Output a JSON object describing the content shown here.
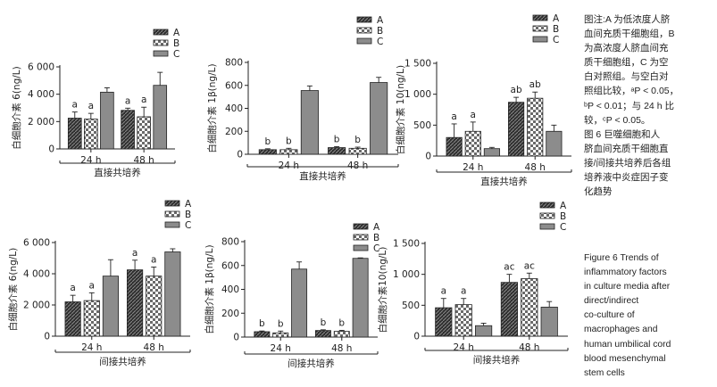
{
  "chart_data": [
    {
      "type": "bar",
      "ylabel": "白细胞介素 6(ng/L)",
      "xlabel": "直接共培养",
      "categories": [
        "24 h",
        "48 h"
      ],
      "ylim": [
        0,
        6000
      ],
      "yticks": [
        "0",
        "2 000",
        "4 000",
        "6 000"
      ],
      "series": [
        {
          "name": "A",
          "values": [
            2250,
            2820
          ],
          "errors": [
            450,
            160
          ]
        },
        {
          "name": "B",
          "values": [
            2180,
            2350
          ],
          "errors": [
            420,
            700
          ]
        },
        {
          "name": "C",
          "values": [
            4150,
            4650
          ],
          "errors": [
            320,
            950
          ]
        }
      ],
      "annotations": [
        [
          "a",
          "a",
          ""
        ],
        [
          "a",
          "a",
          ""
        ]
      ]
    },
    {
      "type": "bar",
      "ylabel": "白细胞介素 1β(ng/L)",
      "xlabel": "直接共培养",
      "categories": [
        "24 h",
        "48 h"
      ],
      "ylim": [
        0,
        800
      ],
      "yticks": [
        "0",
        "200",
        "400",
        "600",
        "800"
      ],
      "series": [
        {
          "name": "A",
          "values": [
            40,
            58
          ],
          "errors": [
            8,
            8
          ]
        },
        {
          "name": "B",
          "values": [
            40,
            52
          ],
          "errors": [
            12,
            10
          ]
        },
        {
          "name": "C",
          "values": [
            555,
            625
          ],
          "errors": [
            40,
            45
          ]
        }
      ],
      "annotations": [
        [
          "b",
          "b",
          ""
        ],
        [
          "b",
          "b",
          ""
        ]
      ]
    },
    {
      "type": "bar",
      "ylabel": "白细胞介素 10(ng/L)",
      "xlabel": "直接共培养",
      "categories": [
        "24 h",
        "48 h"
      ],
      "ylim": [
        0,
        1500
      ],
      "yticks": [
        "0",
        "500",
        "1 000",
        "1 500"
      ],
      "series": [
        {
          "name": "A",
          "values": [
            300,
            870
          ],
          "errors": [
            220,
            80
          ]
        },
        {
          "name": "B",
          "values": [
            400,
            935
          ],
          "errors": [
            150,
            100
          ]
        },
        {
          "name": "C",
          "values": [
            120,
            400
          ],
          "errors": [
            20,
            100
          ]
        }
      ],
      "annotations": [
        [
          "a",
          "a",
          ""
        ],
        [
          "ab",
          "ab",
          ""
        ]
      ]
    },
    {
      "type": "bar",
      "ylabel": "白细胞介素 6(ng/L)",
      "xlabel": "间接共培养",
      "categories": [
        "24 h",
        "48 h"
      ],
      "ylim": [
        0,
        6000
      ],
      "yticks": [
        "0",
        "2 000",
        "4 000",
        "6 000"
      ],
      "series": [
        {
          "name": "A",
          "values": [
            2200,
            4250
          ],
          "errors": [
            420,
            620
          ]
        },
        {
          "name": "B",
          "values": [
            2280,
            3850
          ],
          "errors": [
            500,
            580
          ]
        },
        {
          "name": "C",
          "values": [
            3850,
            5400
          ],
          "errors": [
            1050,
            200
          ]
        }
      ],
      "annotations": [
        [
          "a",
          "a",
          ""
        ],
        [
          "a",
          "a",
          ""
        ]
      ]
    },
    {
      "type": "bar",
      "ylabel": "白细胞介素 1β(ng/L)",
      "xlabel": "间接共培养",
      "categories": [
        "24 h",
        "48 h"
      ],
      "ylim": [
        0,
        800
      ],
      "yticks": [
        "0",
        "200",
        "400",
        "600",
        "800"
      ],
      "series": [
        {
          "name": "A",
          "values": [
            45,
            55
          ],
          "errors": [
            6,
            6
          ]
        },
        {
          "name": "B",
          "values": [
            35,
            48
          ],
          "errors": [
            15,
            8
          ]
        },
        {
          "name": "C",
          "values": [
            570,
            660
          ],
          "errors": [
            60,
            4
          ]
        }
      ],
      "annotations": [
        [
          "b",
          "b",
          ""
        ],
        [
          "b",
          "b",
          ""
        ]
      ]
    },
    {
      "type": "bar",
      "ylabel": "白细胞介素10(ng/L)",
      "xlabel": "间接共培养",
      "categories": [
        "24 h",
        "48 h"
      ],
      "ylim": [
        0,
        1500
      ],
      "yticks": [
        "0",
        "500",
        "1 000",
        "1 500"
      ],
      "series": [
        {
          "name": "A",
          "values": [
            460,
            870
          ],
          "errors": [
            150,
            130
          ]
        },
        {
          "name": "B",
          "values": [
            510,
            930
          ],
          "errors": [
            100,
            90
          ]
        },
        {
          "name": "C",
          "values": [
            170,
            470
          ],
          "errors": [
            40,
            90
          ]
        }
      ],
      "annotations": [
        [
          "a",
          "a",
          ""
        ],
        [
          "ac",
          "ac",
          ""
        ]
      ]
    }
  ],
  "legend": [
    "A",
    "B",
    "C"
  ],
  "note_cn": [
    "图注:A 为低浓度人脐",
    "血间充质干细胞组，B",
    "为高浓度人脐血间充",
    "质干细胞组，C 为空",
    "白对照组。与空白对",
    "照组比较，ᵃP < 0.05，",
    "ᵇP < 0.01；与 24 h 比",
    "较，ᶜP < 0.05。",
    "图 6   巨噬细胞和人",
    "脐血间充质干细胞直",
    "接/间接共培养后各组",
    "培养液中炎症因子变",
    "化趋势"
  ],
  "note_en": [
    "Figure 6   Trends of",
    "inflammatory factors",
    "in culture media after",
    "direct/indirect",
    "co-culture of",
    "macrophages and",
    "human umbilical cord",
    "blood mesenchymal",
    "stem cells"
  ],
  "colors": {
    "A": "#3c3c3c",
    "B": "#9a9a9a",
    "C": "#8a8a8a",
    "axis": "#222222"
  }
}
